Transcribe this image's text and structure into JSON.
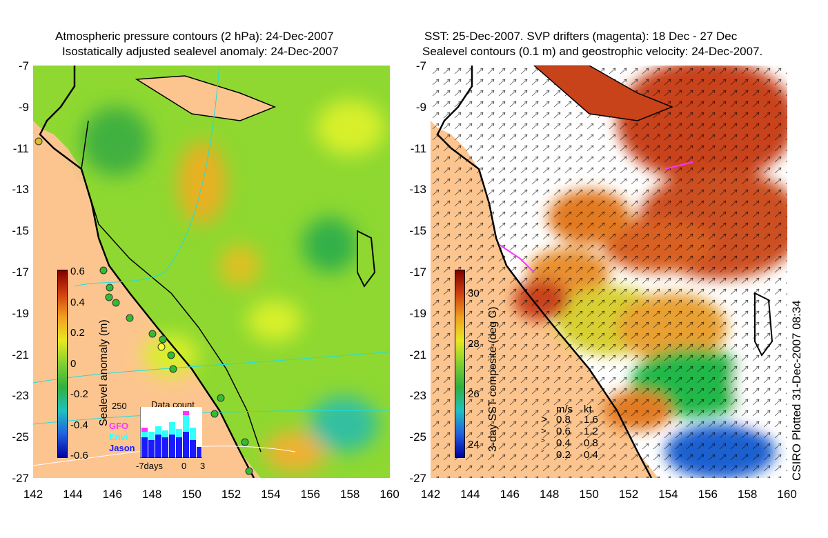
{
  "left_panel": {
    "title_line1": "Atmospheric pressure contours (2 hPa): 24-Dec-2007",
    "title_line2": "Isostatically adjusted sealevel anomaly: 24-Dec-2007",
    "colorbar_label": "Sealevel anomaly (m)",
    "colorbar_ticks": [
      "0.6",
      "0.4",
      "0.2",
      "0",
      "-0.2",
      "-0.4",
      "-0.6"
    ],
    "inset": {
      "title": "Data count",
      "ymax_label": "250",
      "series": [
        {
          "name": "GFO",
          "color": "#ff33ff"
        },
        {
          "name": "Envi",
          "color": "#33ffff"
        },
        {
          "name": "Jason",
          "color": "#1a1aff"
        }
      ],
      "x_labels": [
        "-7days",
        "0",
        "3"
      ]
    }
  },
  "right_panel": {
    "title_line1": "SST: 25-Dec-2007. SVP drifters (magenta): 18 Dec - 27 Dec",
    "title_line2": "Sealevel contours (0.1 m) and geostrophic velocity: 24-Dec-2007.",
    "colorbar_label": "3-day SST composite (deg C)",
    "colorbar_ticks": [
      "30",
      "28",
      "26",
      "24"
    ],
    "speed_legend": {
      "header": [
        "m/s",
        "kt"
      ],
      "rows": [
        [
          "0.8",
          "1.6"
        ],
        [
          "0.6",
          "1.2"
        ],
        [
          "0.4",
          "0.8"
        ],
        [
          "0.2",
          "0.4"
        ]
      ]
    },
    "credit": "CSIRO Plotted 31-Dec-2007 08:34"
  },
  "axes": {
    "y_ticks": [
      "-7",
      "-9",
      "-11",
      "-13",
      "-15",
      "-17",
      "-19",
      "-21",
      "-23",
      "-25",
      "-27"
    ],
    "x_ticks": [
      "142",
      "144",
      "146",
      "148",
      "150",
      "152",
      "154",
      "156",
      "158",
      "160"
    ]
  },
  "colors": {
    "land": "#fcc58f",
    "anomaly_green": "#8ed831",
    "anomaly_yellow": "#d8f02a",
    "sst_red": "#c8421a",
    "sst_orange": "#e27a20",
    "sst_green": "#22b84a",
    "sst_blue": "#1a60d0"
  }
}
